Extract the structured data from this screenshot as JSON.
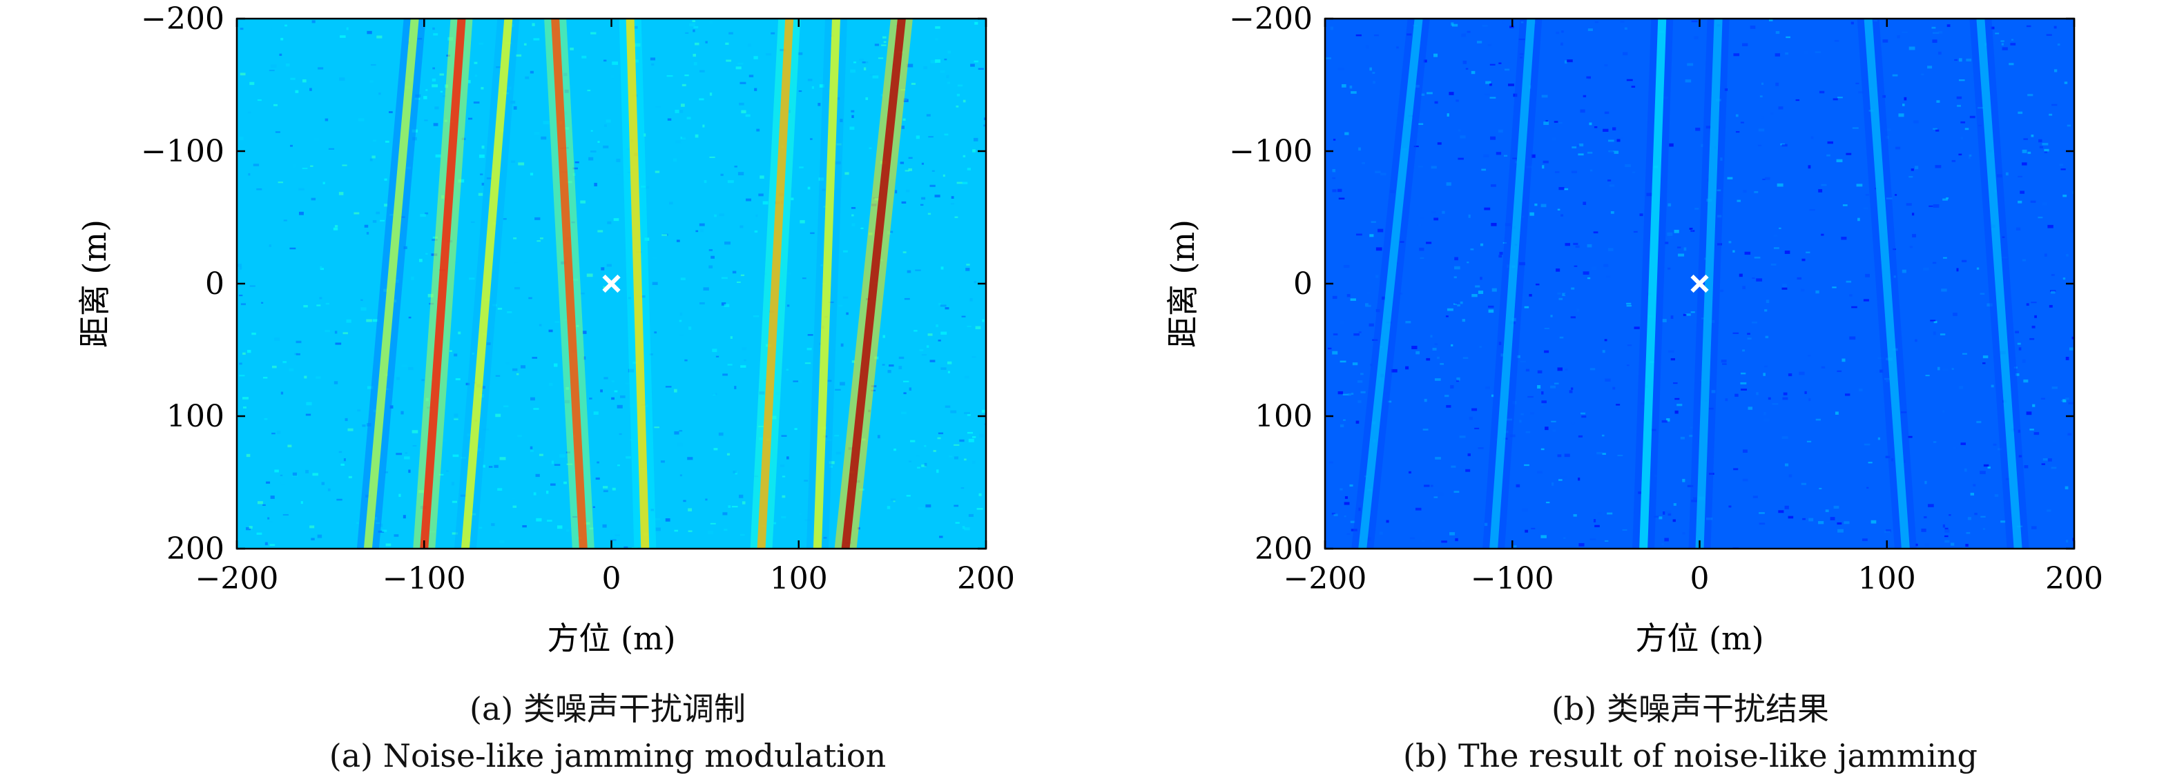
{
  "panels": [
    {
      "id": "a",
      "caption_cn": "(a) 类噪声干扰调制",
      "caption_en": "(a) Noise-like jamming modulation",
      "xlabel": "方位 (m)",
      "ylabel": "距离 (m)",
      "xticks": [
        "−200",
        "−100",
        "0",
        "100",
        "200"
      ],
      "yticks": [
        "−200",
        "−100",
        "0",
        "100",
        "200"
      ]
    },
    {
      "id": "b",
      "caption_cn": "(b) 类噪声干扰结果",
      "caption_en": "(b) The result of noise-like jamming",
      "xlabel": "方位 (m)",
      "ylabel": "距离 (m)",
      "xticks": [
        "−200",
        "−100",
        "0",
        "100",
        "200"
      ],
      "yticks": [
        "−200",
        "−100",
        "0",
        "100",
        "200"
      ]
    }
  ],
  "chart_data": [
    {
      "type": "heatmap",
      "xlabel": "方位 (m)",
      "ylabel": "距离 (m)",
      "xlim": [
        -200,
        200
      ],
      "ylim": [
        -200,
        200
      ],
      "y_axis_inverted": true,
      "xticks": [
        -200,
        -100,
        0,
        100,
        200
      ],
      "yticks": [
        -200,
        -100,
        0,
        100,
        200
      ],
      "colormap": "jet",
      "marker": {
        "x": 0,
        "y": 0,
        "symbol": "x",
        "color": "#ffffff"
      },
      "stripes": [
        {
          "x_top": -105,
          "x_bottom": -130,
          "intensity": 0.55
        },
        {
          "x_top": -80,
          "x_bottom": -100,
          "intensity": 0.85
        },
        {
          "x_top": -55,
          "x_bottom": -78,
          "intensity": 0.6
        },
        {
          "x_top": -30,
          "x_bottom": -15,
          "intensity": 0.8
        },
        {
          "x_top": 10,
          "x_bottom": 18,
          "intensity": 0.65
        },
        {
          "x_top": 95,
          "x_bottom": 80,
          "intensity": 0.7
        },
        {
          "x_top": 120,
          "x_bottom": 110,
          "intensity": 0.6
        },
        {
          "x_top": 155,
          "x_bottom": 125,
          "intensity": 0.95
        }
      ]
    },
    {
      "type": "heatmap",
      "xlabel": "方位 (m)",
      "ylabel": "距离 (m)",
      "xlim": [
        -200,
        200
      ],
      "ylim": [
        -200,
        200
      ],
      "y_axis_inverted": true,
      "xticks": [
        -200,
        -100,
        0,
        100,
        200
      ],
      "yticks": [
        -200,
        -100,
        0,
        100,
        200
      ],
      "colormap": "jet",
      "marker": {
        "x": 0,
        "y": 0,
        "symbol": "x",
        "color": "#ffffff"
      },
      "stripes": [
        {
          "x_top": -150,
          "x_bottom": -180,
          "intensity": 0.3
        },
        {
          "x_top": -90,
          "x_bottom": -110,
          "intensity": 0.3
        },
        {
          "x_top": -20,
          "x_bottom": -30,
          "intensity": 0.35
        },
        {
          "x_top": 10,
          "x_bottom": 0,
          "intensity": 0.3
        },
        {
          "x_top": 90,
          "x_bottom": 110,
          "intensity": 0.3
        },
        {
          "x_top": 150,
          "x_bottom": 170,
          "intensity": 0.3
        }
      ]
    }
  ]
}
